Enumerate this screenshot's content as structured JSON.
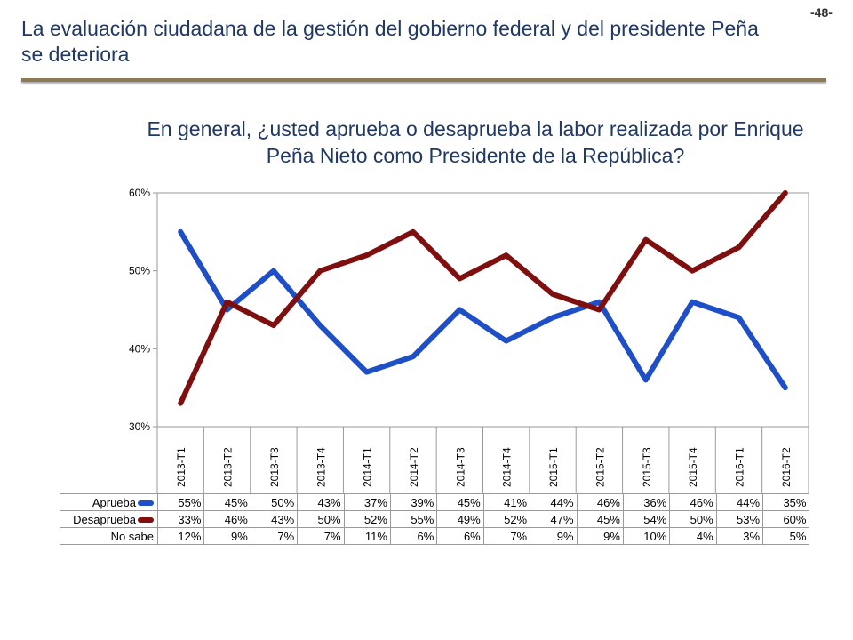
{
  "page": {
    "number": "-48-",
    "title": "La evaluación ciudadana de la gestión del gobierno federal y del presidente Peña se deteriora"
  },
  "chart_data": {
    "type": "line",
    "title": "En general, ¿usted aprueba o desaprueba la labor realizada por Enrique Peña Nieto como Presidente de la República?",
    "categories": [
      "2013-T1",
      "2013-T2",
      "2013-T3",
      "2013-T4",
      "2014-T1",
      "2014-T2",
      "2014-T3",
      "2014-T4",
      "2015-T1",
      "2015-T2",
      "2015-T3",
      "2015-T4",
      "2016-T1",
      "2016-T2"
    ],
    "yticks": [
      "30%",
      "40%",
      "50%",
      "60%"
    ],
    "ylim": [
      30,
      60
    ],
    "grid": false,
    "series": [
      {
        "name": "Aprueba",
        "color": "#1f4fc8",
        "values": [
          55,
          45,
          50,
          43,
          37,
          39,
          45,
          41,
          44,
          46,
          36,
          46,
          44,
          35
        ]
      },
      {
        "name": "Desaprueba",
        "color": "#7f0f0f",
        "values": [
          33,
          46,
          43,
          50,
          52,
          55,
          49,
          52,
          47,
          45,
          54,
          50,
          53,
          60
        ]
      }
    ],
    "table": [
      {
        "label": "Aprueba",
        "key": "series0",
        "cells": [
          "55%",
          "45%",
          "50%",
          "43%",
          "37%",
          "39%",
          "45%",
          "41%",
          "44%",
          "46%",
          "36%",
          "46%",
          "44%",
          "35%"
        ]
      },
      {
        "label": "Desaprueba",
        "key": "series1",
        "cells": [
          "33%",
          "46%",
          "43%",
          "50%",
          "52%",
          "55%",
          "49%",
          "52%",
          "47%",
          "45%",
          "54%",
          "50%",
          "53%",
          "60%"
        ]
      },
      {
        "label": "No sabe",
        "key": "",
        "cells": [
          "12%",
          "9%",
          "7%",
          "7%",
          "11%",
          "6%",
          "6%",
          "7%",
          "9%",
          "9%",
          "10%",
          "4%",
          "3%",
          "5%"
        ]
      }
    ]
  }
}
